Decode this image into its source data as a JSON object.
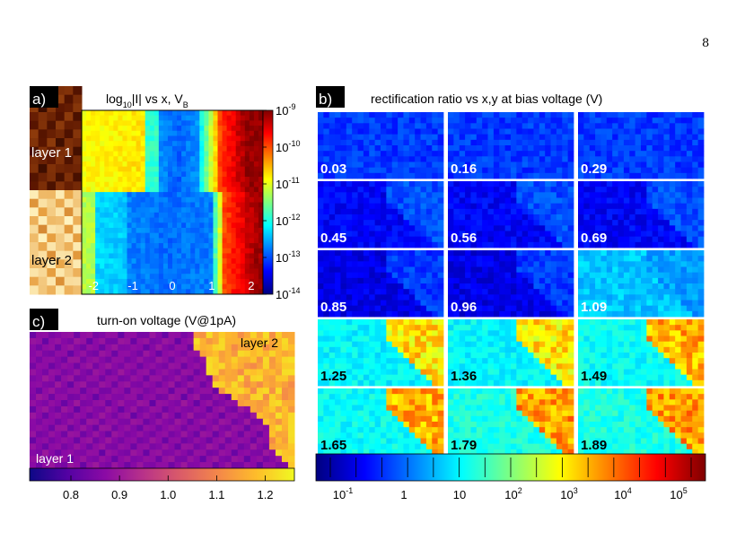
{
  "page_number": "8",
  "panels": {
    "a": {
      "letter": "a)",
      "title": {
        "main": "log",
        "sub": "10",
        "rest": "|I| vs x, V",
        "rest_sub": "B"
      },
      "layer1_label": "layer 1",
      "layer2_label": "layer 2",
      "x_ticks": [
        "-2",
        "-1",
        "0",
        "1",
        "2"
      ],
      "colorbar_ticks": [
        {
          "base": "10",
          "exp": "-9"
        },
        {
          "base": "10",
          "exp": "-10"
        },
        {
          "base": "10",
          "exp": "-11"
        },
        {
          "base": "10",
          "exp": "-12"
        },
        {
          "base": "10",
          "exp": "-13"
        },
        {
          "base": "10",
          "exp": "-14"
        }
      ]
    },
    "b": {
      "letter": "b)",
      "title": "rectification ratio vs x,y at bias voltage (V)",
      "tile_labels": [
        "0.03",
        "0.16",
        "0.29",
        "0.45",
        "0.56",
        "0.69",
        "0.85",
        "0.96",
        "1.09",
        "1.25",
        "1.36",
        "1.49",
        "1.65",
        "1.79",
        "1.89"
      ],
      "colorbar_ticks": [
        {
          "base": "10",
          "exp": "-1"
        },
        {
          "base": "1",
          "exp": ""
        },
        {
          "base": "10",
          "exp": ""
        },
        {
          "base": "10",
          "exp": "2"
        },
        {
          "base": "10",
          "exp": "3"
        },
        {
          "base": "10",
          "exp": "4"
        },
        {
          "base": "10",
          "exp": "5"
        }
      ]
    },
    "c": {
      "letter": "c)",
      "title": "turn-on voltage (V@1pA)",
      "layer1_label": "layer 1",
      "layer2_label": "layer 2",
      "colorbar_ticks": [
        "0.8",
        "0.9",
        "1.0",
        "1.1",
        "1.2"
      ]
    }
  },
  "colors": {
    "jet": [
      "#00007f",
      "#0000ff",
      "#007fff",
      "#00ffff",
      "#7fff7f",
      "#ffff00",
      "#ff7f00",
      "#ff0000",
      "#7f0000"
    ],
    "plasma": [
      "#0d0887",
      "#5302a3",
      "#8b0aa5",
      "#b83289",
      "#db5c68",
      "#f48849",
      "#febd2a",
      "#f0f921"
    ],
    "brown": [
      "#1a0500",
      "#5a1500",
      "#a24a10",
      "#e8a040",
      "#fff3c0"
    ]
  }
}
